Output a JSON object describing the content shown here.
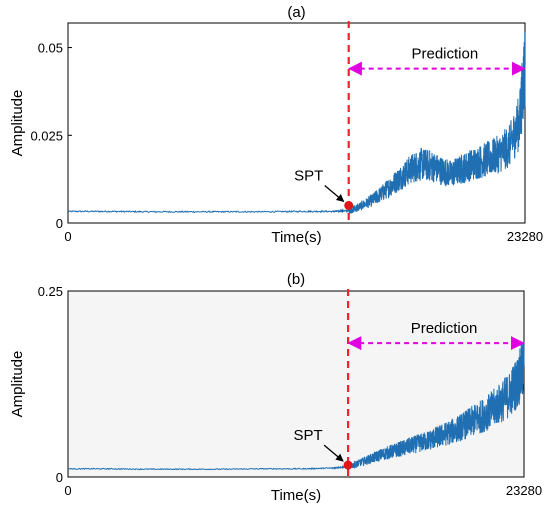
{
  "chart_data": [
    {
      "type": "line",
      "title": "(a)",
      "xlabel": "Time(s)",
      "ylabel": "Amplitude",
      "xlim": [
        0,
        23280
      ],
      "ylim": [
        0,
        0.057
      ],
      "x_ticks": [
        {
          "value": 0,
          "label": "0"
        },
        {
          "value": 23280,
          "label": "23280"
        }
      ],
      "y_ticks": [
        {
          "value": 0,
          "label": "0"
        },
        {
          "value": 0.025,
          "label": "0.025"
        },
        {
          "value": 0.05,
          "label": "0.05"
        }
      ],
      "grid": false,
      "background": "#ffffff",
      "line_color": "#1f6fb2",
      "series": [
        {
          "x": [
            0,
            2000,
            4000,
            6000,
            8000,
            10000,
            12000,
            13500,
            14300,
            14800,
            15500,
            16000,
            16500,
            17000,
            17500,
            18000,
            18500,
            19000,
            19500,
            20000,
            20500,
            21000,
            21500,
            22000,
            22500,
            23000,
            23280
          ],
          "y": [
            0.0033,
            0.0033,
            0.0032,
            0.0032,
            0.0032,
            0.0032,
            0.0033,
            0.0033,
            0.0035,
            0.0045,
            0.0065,
            0.0085,
            0.0108,
            0.0132,
            0.0155,
            0.0168,
            0.0163,
            0.015,
            0.014,
            0.0152,
            0.0165,
            0.0175,
            0.0185,
            0.0198,
            0.022,
            0.029,
            0.045
          ]
        }
      ],
      "marker": {
        "label": "SPT",
        "x": 14300,
        "y": 0.005,
        "color": "#e0161b"
      },
      "divider": {
        "x": 14300,
        "color": "#e8262b"
      },
      "annotation": {
        "label": "Prediction",
        "from": 14300,
        "to": 23280,
        "y": 0.044,
        "color": "#e000e0"
      }
    },
    {
      "type": "line",
      "title": "(b)",
      "xlabel": "Time(s)",
      "ylabel": "Amplitude",
      "xlim": [
        0,
        23280
      ],
      "ylim": [
        0,
        0.25
      ],
      "x_ticks": [
        {
          "value": 0,
          "label": "0"
        },
        {
          "value": 23280,
          "label": "23280"
        }
      ],
      "y_ticks": [
        {
          "value": 0,
          "label": "0"
        },
        {
          "value": 0.25,
          "label": "0.25"
        }
      ],
      "grid": false,
      "background": "#f5f5f5",
      "line_color": "#1f6fb2",
      "series": [
        {
          "x": [
            0,
            2000,
            4000,
            6000,
            8000,
            10000,
            12000,
            13500,
            14300,
            14800,
            15500,
            16000,
            16500,
            17000,
            17500,
            18000,
            18500,
            19000,
            19500,
            20000,
            20500,
            21000,
            21500,
            22000,
            22500,
            23000,
            23280
          ],
          "y": [
            0.011,
            0.011,
            0.0105,
            0.0105,
            0.0105,
            0.011,
            0.011,
            0.012,
            0.014,
            0.018,
            0.025,
            0.03,
            0.034,
            0.038,
            0.042,
            0.046,
            0.05,
            0.055,
            0.06,
            0.066,
            0.073,
            0.08,
            0.088,
            0.098,
            0.11,
            0.13,
            0.15
          ]
        }
      ],
      "marker": {
        "label": "SPT",
        "x": 14300,
        "y": 0.016,
        "color": "#e0161b"
      },
      "divider": {
        "x": 14300,
        "color": "#e8262b"
      },
      "annotation": {
        "label": "Prediction",
        "from": 14300,
        "to": 23280,
        "y": 0.18,
        "color": "#e000e0"
      }
    }
  ]
}
